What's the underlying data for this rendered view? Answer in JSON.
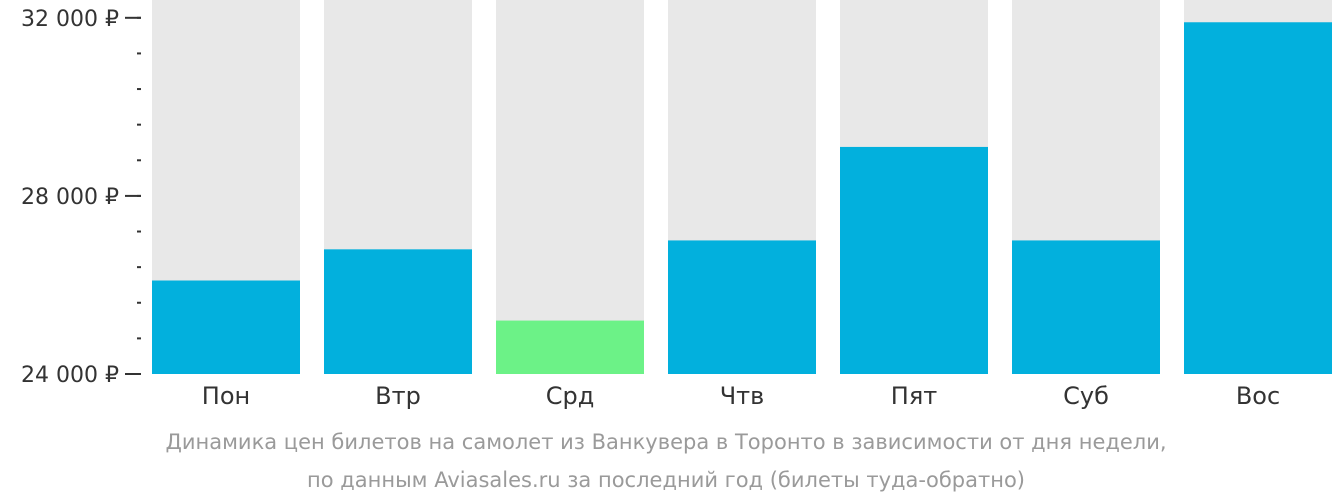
{
  "chart_data": {
    "type": "bar",
    "categories": [
      "Пон",
      "Втр",
      "Срд",
      "Чтв",
      "Пят",
      "Суб",
      "Вос"
    ],
    "values": [
      26100,
      26800,
      25200,
      27000,
      29100,
      27000,
      31900
    ],
    "ylim": [
      24000,
      32400
    ],
    "y_ticks": [
      {
        "value": 24000,
        "label": "24 000 ₽"
      },
      {
        "value": 28000,
        "label": "28 000 ₽"
      },
      {
        "value": 32000,
        "label": "32 000 ₽"
      }
    ],
    "y_minor_step": 800,
    "highlight_index": 2,
    "colors": {
      "bar": "#02b0dd",
      "highlight": "#6cf287",
      "background_bar": "#e8e8e8",
      "axis": "#333333"
    },
    "caption": [
      "Динамика цен билетов на самолет из Ванкувера в Торонто в зависимости от дня недели,",
      "по данным Aviasales.ru за последний год (билеты туда-обратно)"
    ],
    "legend": "none",
    "grid": false
  }
}
